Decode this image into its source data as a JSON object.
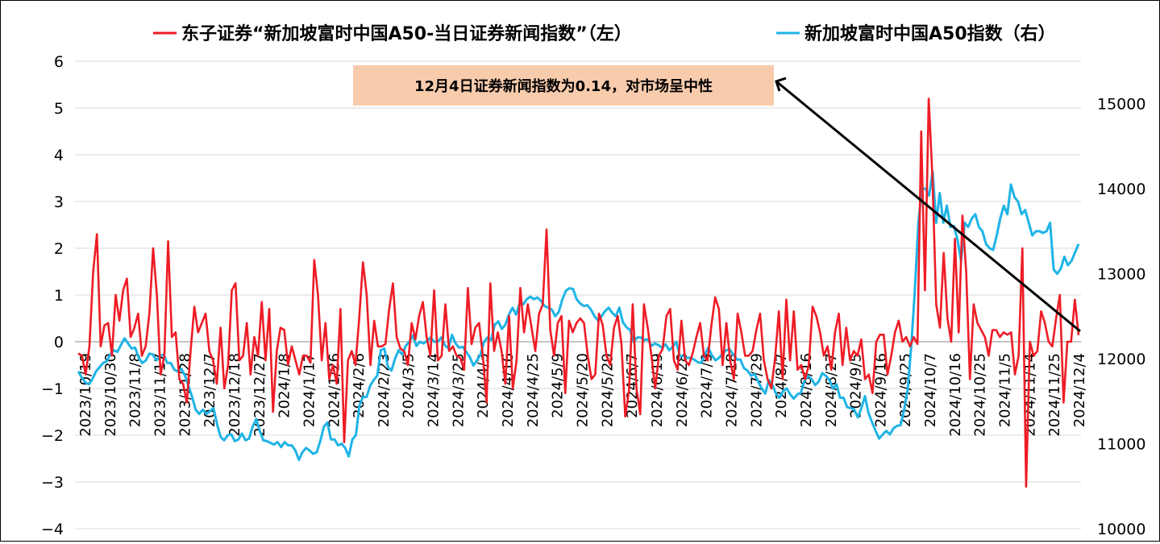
{
  "chart_data": {
    "type": "line",
    "legend": {
      "placement": "top",
      "items": [
        {
          "label": "东子证券“新加坡富时中国A50-当日证券新闻指数”（左）",
          "color": "#EE1C25"
        },
        {
          "label": "新加坡富时中国A50指数（右）",
          "color": "#1FB4E6"
        }
      ]
    },
    "annotation": {
      "text": "12月4日证券新闻指数为0.14，对市场呈中性",
      "bg_color": "#F8CBAD"
    },
    "y_left": {
      "ticks": [
        6,
        5,
        4,
        3,
        2,
        1,
        0,
        -1,
        -2,
        -3,
        -4
      ],
      "ylim": [
        -4,
        6
      ]
    },
    "y_right": {
      "ticks": [
        15000,
        14000,
        13000,
        12000,
        11000,
        10000
      ],
      "ylim": [
        10000,
        15500
      ]
    },
    "grid": true,
    "x_labels": [
      "2023/10/19",
      "2023/10/30",
      "2023/11/8",
      "2023/11/17",
      "2023/11/28",
      "2023/12/7",
      "2023/12/18",
      "2023/12/27",
      "2024/1/8",
      "2024/1/17",
      "2024/1/26",
      "2024/2/6",
      "2024/2/23",
      "2024/3/5",
      "2024/3/14",
      "2024/3/25",
      "2024/4/3",
      "2024/4/16",
      "2024/4/25",
      "2024/5/9",
      "2024/5/20",
      "2024/5/29",
      "2024/6/7",
      "2024/6/19",
      "2024/6/28",
      "2024/7/9",
      "2024/7/18",
      "2024/7/29",
      "2024/8/7",
      "2024/8/16",
      "2024/8/27",
      "2024/9/5",
      "2024/9/16",
      "2024/9/25",
      "2024/10/7",
      "2024/10/16",
      "2024/10/25",
      "2024/11/5",
      "2024/11/14",
      "2024/11/25",
      "2024/12/4"
    ],
    "series": [
      {
        "name": "东子证券“新加坡富时中国A50-当日证券新闻指数”（左）",
        "axis": "left",
        "color": "#EE1C25",
        "values": [
          -0.25,
          -0.3,
          -0.7,
          -0.1,
          1.5,
          2.3,
          -0.1,
          0.35,
          0.4,
          -0.3,
          1.0,
          0.45,
          1.1,
          1.35,
          0.1,
          0.3,
          0.6,
          -0.3,
          -0.1,
          0.6,
          2.0,
          1.0,
          -0.7,
          -0.3,
          2.15,
          0.1,
          0.2,
          -0.8,
          -0.9,
          -1.3,
          -0.2,
          0.75,
          0.2,
          0.4,
          0.6,
          -0.2,
          -0.4,
          -0.9,
          0.3,
          -1.0,
          -0.5,
          1.1,
          1.25,
          -0.4,
          -0.3,
          0.4,
          -0.7,
          0.1,
          -0.3,
          0.85,
          -0.4,
          0.7,
          -1.5,
          -0.2,
          0.3,
          0.25,
          -0.5,
          -0.1,
          -0.4,
          -0.7,
          -0.3,
          -0.3,
          -0.45,
          1.75,
          1.0,
          -0.4,
          0.4,
          -0.8,
          -0.5,
          -0.9,
          0.7,
          -2.15,
          -0.4,
          -0.2,
          -0.5,
          0.5,
          1.7,
          1.0,
          -0.5,
          0.45,
          -0.1,
          -0.1,
          -0.05,
          0.7,
          1.25,
          0.1,
          -0.15,
          -0.2,
          -0.5,
          0.4,
          0.05,
          0.55,
          0.85,
          0.1,
          -0.3,
          1.1,
          -0.4,
          -0.3,
          0.8,
          -0.2,
          -0.1,
          -0.3,
          -0.35,
          -0.6,
          1.15,
          -0.05,
          0.3,
          0.4,
          -0.3,
          -1.3,
          1.25,
          -0.2,
          0.2,
          -0.2,
          -0.9,
          0.55,
          -1.0,
          -0.4,
          1.15,
          0.2,
          0.8,
          0.3,
          -0.2,
          0.6,
          0.8,
          2.4,
          0.25,
          -0.3,
          0.4,
          0.55,
          -1.1,
          0.45,
          0.2,
          0.4,
          0.5,
          0.4,
          -0.3,
          -0.8,
          -0.7,
          0.6,
          0.35,
          -0.3,
          -0.5,
          0.3,
          0.55,
          -0.05,
          -1.6,
          -1.05,
          0.8,
          -1.0,
          -1.55,
          0.8,
          0.3,
          -0.3,
          -1.0,
          -0.3,
          -0.15,
          0.55,
          0.7,
          -0.4,
          -0.6,
          0.45,
          -0.4,
          -0.5,
          -0.25,
          0.1,
          0.4,
          -0.3,
          -0.4,
          0.35,
          0.95,
          0.7,
          -0.5,
          0.4,
          -0.4,
          -0.8,
          0.6,
          0.2,
          -0.3,
          -0.3,
          -0.2,
          0.25,
          0.6,
          -0.4,
          -0.8,
          -1.0,
          -0.35,
          0.65,
          -0.8,
          0.9,
          -0.4,
          0.65,
          -0.6,
          -0.5,
          -0.8,
          -0.5,
          0.75,
          0.55,
          0.2,
          -0.3,
          -0.1,
          -0.6,
          0.2,
          0.6,
          -0.5,
          0.3,
          -0.4,
          -0.2,
          -0.3,
          0.05,
          -0.8,
          -0.7,
          -1.1,
          0.0,
          0.15,
          0.15,
          -0.7,
          -0.3,
          0.2,
          0.45,
          0.0,
          0.1,
          -0.1,
          0.1,
          -0.05,
          4.5,
          1.1,
          5.2,
          3.5,
          0.8,
          0.3,
          1.9,
          0.5,
          0.0,
          2.2,
          0.2,
          2.7,
          1.5,
          -0.8,
          0.8,
          0.4,
          0.25,
          0.1,
          -0.3,
          0.25,
          0.25,
          0.1,
          0.2,
          0.15,
          0.2,
          -0.7,
          -0.3,
          2.0,
          -3.1,
          0.0,
          -0.3,
          -0.2,
          0.65,
          0.4,
          0.0,
          -0.1,
          0.5,
          1.0,
          -1.3,
          0.0,
          0.0,
          0.9,
          0.14
        ]
      },
      {
        "name": "新加坡富时中国A50指数（右）",
        "axis": "right",
        "color": "#1FB4E6",
        "values": [
          11850,
          11780,
          11720,
          11700,
          11760,
          11850,
          11900,
          11950,
          11970,
          12050,
          12100,
          12080,
          12160,
          12240,
          12180,
          12120,
          12130,
          12010,
          11950,
          11980,
          12060,
          12050,
          11980,
          12030,
          12050,
          11950,
          11950,
          11870,
          11850,
          11880,
          11800,
          11680,
          11550,
          11400,
          11350,
          11400,
          11350,
          11380,
          11420,
          11230,
          11080,
          11040,
          11100,
          11110,
          11030,
          11050,
          11120,
          11040,
          11060,
          11200,
          11290,
          11150,
          11040,
          11030,
          11010,
          10990,
          11020,
          10960,
          11020,
          10980,
          10980,
          10920,
          10810,
          10900,
          10950,
          10920,
          10880,
          10900,
          11030,
          11200,
          11250,
          11050,
          11050,
          10980,
          11000,
          10950,
          10850,
          11050,
          11100,
          11450,
          11550,
          11550,
          11680,
          11750,
          11800,
          12100,
          12120,
          11900,
          11860,
          12000,
          12100,
          12050,
          12150,
          12200,
          12270,
          12150,
          12200,
          12180,
          12210,
          12250,
          12200,
          12200,
          12250,
          12160,
          12120,
          12280,
          12180,
          12130,
          12140,
          12080,
          12020,
          11920,
          11980,
          12050,
          12200,
          12250,
          12220,
          12400,
          12440,
          12350,
          12400,
          12520,
          12600,
          12520,
          12650,
          12640,
          12700,
          12730,
          12700,
          12720,
          12680,
          12620,
          12600,
          12580,
          12500,
          12550,
          12700,
          12800,
          12830,
          12820,
          12700,
          12650,
          12620,
          12630,
          12580,
          12500,
          12450,
          12500,
          12560,
          12600,
          12540,
          12500,
          12600,
          12430,
          12370,
          12340,
          12200,
          12250,
          12250,
          12220,
          12230,
          12150,
          12180,
          12160,
          12130,
          12170,
          12100,
          12140,
          12200,
          12030,
          12030,
          12010,
          12010,
          11990,
          11960,
          11950,
          12050,
          12130,
          12040,
          11980,
          12010,
          12060,
          12100,
          12110,
          12050,
          11990,
          11990,
          11890,
          11860,
          11800,
          11820,
          11730,
          11650,
          11590,
          11750,
          11690,
          11590,
          11540,
          11620,
          11650,
          11580,
          11530,
          11580,
          11600,
          11740,
          11800,
          11760,
          11690,
          11730,
          11830,
          11800,
          11750,
          11650,
          11700,
          11540,
          11540,
          11430,
          11420,
          11400,
          11310,
          11420,
          11560,
          11360,
          11250,
          11150,
          11060,
          11110,
          11150,
          11110,
          11180,
          11210,
          11220,
          11400,
          11640,
          12150,
          12800,
          13600,
          14000,
          14000,
          13920,
          14200,
          13600,
          13950,
          13600,
          13800,
          13550,
          13560,
          13400,
          13150,
          13600,
          13550,
          13650,
          13700,
          13550,
          13500,
          13350,
          13300,
          13280,
          13450,
          13650,
          13800,
          13700,
          14050,
          13900,
          13850,
          13700,
          13750,
          13600,
          13450,
          13500,
          13500,
          13480,
          13500,
          13600,
          13050,
          13000,
          13060,
          13200,
          13100,
          13150,
          13250,
          13350
        ]
      }
    ]
  }
}
